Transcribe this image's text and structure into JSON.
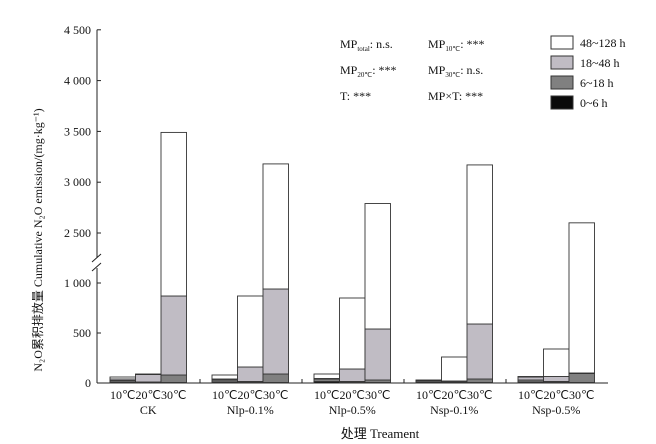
{
  "chart_data": {
    "type": "bar",
    "stacked": true,
    "xlabel": "处理 Treament",
    "ylabel": "N₂O累积排放量 Cumulative N₂O emission/(mg·kg⁻¹)",
    "ylim": [
      0,
      4500
    ],
    "axis_break": [
      1100,
      2400
    ],
    "yticks": [
      "0",
      "500",
      "1 000",
      "2 500",
      "3 000",
      "3 500",
      "4 000",
      "4 500"
    ],
    "ytick_values": [
      0,
      500,
      1000,
      2500,
      3000,
      3500,
      4000,
      4500
    ],
    "groups": [
      "CK",
      "Nlp-0.1%",
      "Nlp-0.5%",
      "Nsp-0.1%",
      "Nsp-0.5%"
    ],
    "temperatures": [
      "10℃",
      "20℃",
      "30℃"
    ],
    "series": [
      {
        "name": "0~6 h",
        "color": "#0a0a0a",
        "values": [
          [
            10,
            5,
            5
          ],
          [
            10,
            5,
            5
          ],
          [
            15,
            5,
            5
          ],
          [
            10,
            5,
            5
          ],
          [
            10,
            5,
            5
          ]
        ]
      },
      {
        "name": "6~18 h",
        "color": "#808080",
        "values": [
          [
            15,
            5,
            75
          ],
          [
            20,
            10,
            85
          ],
          [
            25,
            10,
            25
          ],
          [
            15,
            5,
            35
          ],
          [
            20,
            10,
            90
          ]
        ]
      },
      {
        "name": "18~48 h",
        "color": "#c0bcc4",
        "values": [
          [
            15,
            75,
            790
          ],
          [
            10,
            145,
            850
          ],
          [
            5,
            125,
            510
          ],
          [
            3,
            10,
            550
          ],
          [
            30,
            50,
            5
          ]
        ]
      },
      {
        "name": "48~128 h",
        "color": "#ffffff",
        "values": [
          [
            20,
            5,
            2620
          ],
          [
            40,
            710,
            2240
          ],
          [
            45,
            710,
            2250
          ],
          [
            2,
            240,
            2580
          ],
          [
            5,
            275,
            2500
          ]
        ]
      }
    ],
    "annotations": [
      {
        "main": "MP",
        "sub": "total",
        "rest": ": n.s."
      },
      {
        "main": "MP",
        "sub": "10℃",
        "rest": ": ***"
      },
      {
        "main": "MP",
        "sub": "20℃",
        "rest": ": ***"
      },
      {
        "main": "MP",
        "sub": "30℃",
        "rest": ":  n.s."
      },
      {
        "main": "T",
        "sub": "",
        "rest": ": ***"
      },
      {
        "main": "MP×T",
        "sub": "",
        "rest": ": ***"
      }
    ],
    "legend_position": "top-right"
  }
}
